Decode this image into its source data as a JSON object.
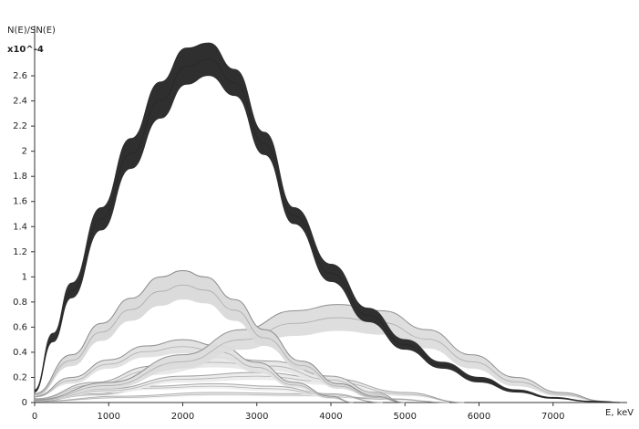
{
  "chart_data": {
    "type": "area",
    "ylabel": "N(E)/SN(E)",
    "xlabel": "E, keV",
    "y_scale_note": "x10^-4",
    "xlim": [
      0,
      8000
    ],
    "ylim": [
      0,
      3.0
    ],
    "x_ticks": [
      0,
      1000,
      2000,
      3000,
      4000,
      5000,
      6000,
      7000
    ],
    "y_ticks": [
      0,
      0.2,
      0.4,
      0.6,
      0.8,
      1,
      1.2,
      1.4,
      1.6,
      1.8,
      2,
      2.2,
      2.4,
      2.6
    ],
    "grid": false,
    "series": [
      {
        "fill": "#2f2f2f",
        "line": "#2f2f2f",
        "points": [
          {
            "x": 0,
            "y": 0.1
          },
          {
            "x": 250,
            "y": 0.55
          },
          {
            "x": 500,
            "y": 0.95
          },
          {
            "x": 900,
            "y": 1.55
          },
          {
            "x": 1300,
            "y": 2.1
          },
          {
            "x": 1700,
            "y": 2.55
          },
          {
            "x": 2050,
            "y": 2.82
          },
          {
            "x": 2350,
            "y": 2.86
          },
          {
            "x": 2700,
            "y": 2.65
          },
          {
            "x": 3100,
            "y": 2.15
          },
          {
            "x": 3500,
            "y": 1.55
          },
          {
            "x": 4000,
            "y": 1.1
          },
          {
            "x": 4500,
            "y": 0.75
          },
          {
            "x": 5000,
            "y": 0.5
          },
          {
            "x": 5500,
            "y": 0.32
          },
          {
            "x": 6000,
            "y": 0.2
          },
          {
            "x": 6500,
            "y": 0.1
          },
          {
            "x": 7000,
            "y": 0.04
          },
          {
            "x": 7500,
            "y": 0.01
          },
          {
            "x": 7900,
            "y": 0
          }
        ],
        "lower_points": [
          {
            "x": 0,
            "y": 0.08
          },
          {
            "x": 250,
            "y": 0.48
          },
          {
            "x": 500,
            "y": 0.83
          },
          {
            "x": 900,
            "y": 1.37
          },
          {
            "x": 1300,
            "y": 1.86
          },
          {
            "x": 1700,
            "y": 2.26
          },
          {
            "x": 2050,
            "y": 2.53
          },
          {
            "x": 2350,
            "y": 2.6
          },
          {
            "x": 2700,
            "y": 2.44
          },
          {
            "x": 3100,
            "y": 1.97
          },
          {
            "x": 3500,
            "y": 1.42
          },
          {
            "x": 4000,
            "y": 0.96
          },
          {
            "x": 4500,
            "y": 0.64
          },
          {
            "x": 5000,
            "y": 0.42
          },
          {
            "x": 5500,
            "y": 0.27
          },
          {
            "x": 6000,
            "y": 0.16
          },
          {
            "x": 6500,
            "y": 0.08
          },
          {
            "x": 7000,
            "y": 0.03
          },
          {
            "x": 7500,
            "y": 0.005
          },
          {
            "x": 7900,
            "y": 0
          }
        ]
      },
      {
        "fill": "#d9d9d9",
        "line": "#8a8a8a",
        "points": [
          {
            "x": 0,
            "y": 0.07
          },
          {
            "x": 500,
            "y": 0.38
          },
          {
            "x": 900,
            "y": 0.63
          },
          {
            "x": 1300,
            "y": 0.83
          },
          {
            "x": 1700,
            "y": 1.0
          },
          {
            "x": 2000,
            "y": 1.05
          },
          {
            "x": 2300,
            "y": 1.0
          },
          {
            "x": 2700,
            "y": 0.82
          },
          {
            "x": 3100,
            "y": 0.58
          },
          {
            "x": 3600,
            "y": 0.33
          },
          {
            "x": 4100,
            "y": 0.15
          },
          {
            "x": 4600,
            "y": 0.05
          },
          {
            "x": 5000,
            "y": 0
          }
        ],
        "lower_points": [
          {
            "x": 0,
            "y": 0.05
          },
          {
            "x": 500,
            "y": 0.29
          },
          {
            "x": 900,
            "y": 0.49
          },
          {
            "x": 1300,
            "y": 0.65
          },
          {
            "x": 1700,
            "y": 0.77
          },
          {
            "x": 2000,
            "y": 0.82
          },
          {
            "x": 2300,
            "y": 0.79
          },
          {
            "x": 2700,
            "y": 0.65
          },
          {
            "x": 3100,
            "y": 0.45
          },
          {
            "x": 3600,
            "y": 0.26
          },
          {
            "x": 4100,
            "y": 0.11
          },
          {
            "x": 4600,
            "y": 0.03
          },
          {
            "x": 5000,
            "y": 0
          }
        ]
      },
      {
        "fill": "#dcdcdc",
        "line": "#8f8f8f",
        "points": [
          {
            "x": 0,
            "y": 0.02
          },
          {
            "x": 1000,
            "y": 0.16
          },
          {
            "x": 2000,
            "y": 0.38
          },
          {
            "x": 2800,
            "y": 0.58
          },
          {
            "x": 3500,
            "y": 0.73
          },
          {
            "x": 4100,
            "y": 0.78
          },
          {
            "x": 4700,
            "y": 0.73
          },
          {
            "x": 5300,
            "y": 0.58
          },
          {
            "x": 5900,
            "y": 0.38
          },
          {
            "x": 6500,
            "y": 0.2
          },
          {
            "x": 7100,
            "y": 0.08
          },
          {
            "x": 7700,
            "y": 0.01
          },
          {
            "x": 7900,
            "y": 0
          }
        ],
        "lower_points": [
          {
            "x": 0,
            "y": 0.01
          },
          {
            "x": 1000,
            "y": 0.11
          },
          {
            "x": 2000,
            "y": 0.27
          },
          {
            "x": 2800,
            "y": 0.42
          },
          {
            "x": 3500,
            "y": 0.53
          },
          {
            "x": 4100,
            "y": 0.57
          },
          {
            "x": 4700,
            "y": 0.54
          },
          {
            "x": 5300,
            "y": 0.43
          },
          {
            "x": 5900,
            "y": 0.27
          },
          {
            "x": 6500,
            "y": 0.13
          },
          {
            "x": 7100,
            "y": 0.05
          },
          {
            "x": 7700,
            "y": 0.005
          },
          {
            "x": 7900,
            "y": 0
          }
        ]
      },
      {
        "fill": "#e0e0e0",
        "line": "#8e8e8e",
        "points": [
          {
            "x": 0,
            "y": 0.05
          },
          {
            "x": 500,
            "y": 0.2
          },
          {
            "x": 1000,
            "y": 0.34
          },
          {
            "x": 1500,
            "y": 0.45
          },
          {
            "x": 2000,
            "y": 0.5
          },
          {
            "x": 2500,
            "y": 0.45
          },
          {
            "x": 3000,
            "y": 0.32
          },
          {
            "x": 3500,
            "y": 0.16
          },
          {
            "x": 4000,
            "y": 0.05
          },
          {
            "x": 4300,
            "y": 0
          }
        ],
        "lower_points": [
          {
            "x": 0,
            "y": 0.04
          },
          {
            "x": 500,
            "y": 0.15
          },
          {
            "x": 1000,
            "y": 0.27
          },
          {
            "x": 1500,
            "y": 0.36
          },
          {
            "x": 2000,
            "y": 0.39
          },
          {
            "x": 2500,
            "y": 0.35
          },
          {
            "x": 3000,
            "y": 0.24
          },
          {
            "x": 3500,
            "y": 0.12
          },
          {
            "x": 4000,
            "y": 0.03
          },
          {
            "x": 4300,
            "y": 0
          }
        ]
      },
      {
        "fill": "#e7e7e7",
        "line": "#9a9a9a",
        "points": [
          {
            "x": 0,
            "y": 0.03
          },
          {
            "x": 800,
            "y": 0.16
          },
          {
            "x": 1600,
            "y": 0.29
          },
          {
            "x": 2400,
            "y": 0.36
          },
          {
            "x": 3200,
            "y": 0.33
          },
          {
            "x": 4000,
            "y": 0.21
          },
          {
            "x": 4600,
            "y": 0.08
          },
          {
            "x": 5000,
            "y": 0
          }
        ],
        "lower_points": [
          {
            "x": 0,
            "y": 0.02
          },
          {
            "x": 800,
            "y": 0.12
          },
          {
            "x": 1600,
            "y": 0.22
          },
          {
            "x": 2400,
            "y": 0.28
          },
          {
            "x": 3200,
            "y": 0.25
          },
          {
            "x": 4000,
            "y": 0.15
          },
          {
            "x": 4600,
            "y": 0.05
          },
          {
            "x": 5000,
            "y": 0
          }
        ]
      },
      {
        "fill": "#ebebeb",
        "line": "#a0a0a0",
        "points": [
          {
            "x": 0,
            "y": 0.02
          },
          {
            "x": 1000,
            "y": 0.11
          },
          {
            "x": 2000,
            "y": 0.21
          },
          {
            "x": 3000,
            "y": 0.24
          },
          {
            "x": 4000,
            "y": 0.19
          },
          {
            "x": 5000,
            "y": 0.08
          },
          {
            "x": 5800,
            "y": 0
          }
        ],
        "lower_points": [
          {
            "x": 0,
            "y": 0.015
          },
          {
            "x": 1000,
            "y": 0.08
          },
          {
            "x": 2000,
            "y": 0.16
          },
          {
            "x": 3000,
            "y": 0.18
          },
          {
            "x": 4000,
            "y": 0.14
          },
          {
            "x": 5000,
            "y": 0.05
          },
          {
            "x": 5800,
            "y": 0
          }
        ]
      },
      {
        "fill": "#efefef",
        "line": "#a6a6a6",
        "points": [
          {
            "x": 0,
            "y": 0.01
          },
          {
            "x": 800,
            "y": 0.07
          },
          {
            "x": 1600,
            "y": 0.13
          },
          {
            "x": 2400,
            "y": 0.15
          },
          {
            "x": 3200,
            "y": 0.13
          },
          {
            "x": 4000,
            "y": 0.07
          },
          {
            "x": 4700,
            "y": 0
          }
        ],
        "lower_points": [
          {
            "x": 0,
            "y": 0.008
          },
          {
            "x": 800,
            "y": 0.05
          },
          {
            "x": 1600,
            "y": 0.1
          },
          {
            "x": 2400,
            "y": 0.11
          },
          {
            "x": 3200,
            "y": 0.09
          },
          {
            "x": 4000,
            "y": 0.05
          },
          {
            "x": 4700,
            "y": 0
          }
        ]
      },
      {
        "fill": "#f1f1f1",
        "line": "#adadad",
        "points": [
          {
            "x": 0,
            "y": 0.01
          },
          {
            "x": 1200,
            "y": 0.05
          },
          {
            "x": 2400,
            "y": 0.08
          },
          {
            "x": 3600,
            "y": 0.07
          },
          {
            "x": 4800,
            "y": 0.03
          },
          {
            "x": 5600,
            "y": 0
          }
        ],
        "lower_points": [
          {
            "x": 0,
            "y": 0.005
          },
          {
            "x": 1200,
            "y": 0.03
          },
          {
            "x": 2400,
            "y": 0.05
          },
          {
            "x": 3600,
            "y": 0.045
          },
          {
            "x": 4800,
            "y": 0.02
          },
          {
            "x": 5600,
            "y": 0
          }
        ]
      }
    ]
  }
}
